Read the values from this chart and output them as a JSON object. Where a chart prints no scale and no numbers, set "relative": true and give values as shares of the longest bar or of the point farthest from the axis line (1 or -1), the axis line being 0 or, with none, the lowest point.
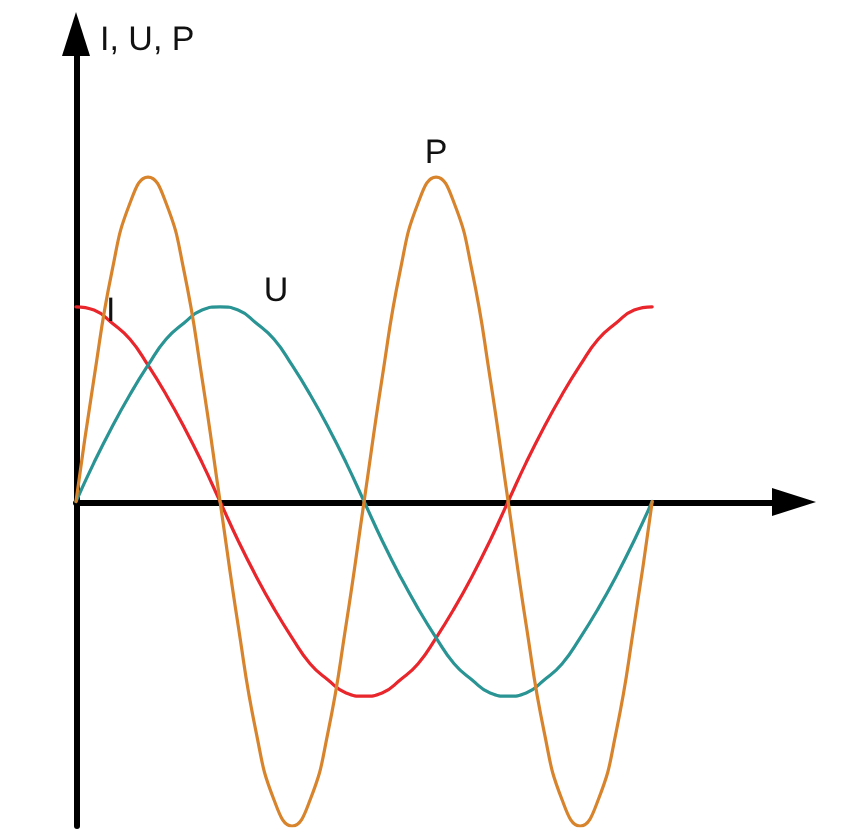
{
  "chart_data": {
    "type": "line",
    "ylabel": "I, U, P",
    "relative": true,
    "legend": false,
    "grid": false,
    "marker": "none",
    "line_style": "solid",
    "categories": [
      null,
      null,
      null,
      null,
      null,
      null,
      null,
      null,
      null,
      null,
      null,
      null,
      null,
      null,
      null,
      null,
      null,
      null,
      null,
      null,
      null,
      null,
      null,
      null,
      null,
      null,
      null,
      null,
      null,
      null,
      null,
      null,
      null
    ],
    "series": [
      {
        "name": "I",
        "color": "#e8262b",
        "values": [
          0.6,
          0.59,
          0.55,
          0.5,
          0.42,
          0.33,
          0.23,
          0.12,
          0,
          -0.12,
          -0.23,
          -0.33,
          -0.42,
          -0.5,
          -0.55,
          -0.59,
          -0.6,
          -0.59,
          -0.55,
          -0.5,
          -0.42,
          -0.33,
          -0.23,
          -0.12,
          0,
          0.12,
          0.23,
          0.33,
          0.42,
          0.5,
          0.55,
          0.59,
          0.6
        ]
      },
      {
        "name": "U",
        "color": "#2a9494",
        "values": [
          0,
          0.12,
          0.23,
          0.33,
          0.42,
          0.5,
          0.55,
          0.59,
          0.6,
          0.59,
          0.55,
          0.5,
          0.42,
          0.33,
          0.23,
          0.12,
          0,
          -0.12,
          -0.23,
          -0.33,
          -0.42,
          -0.5,
          -0.55,
          -0.59,
          -0.6,
          -0.59,
          -0.55,
          -0.5,
          -0.42,
          -0.33,
          -0.23,
          -0.12,
          0
        ]
      },
      {
        "name": "P",
        "color": "#d8842c",
        "values": [
          0,
          0.38,
          0.71,
          0.92,
          1,
          0.92,
          0.71,
          0.38,
          0,
          -0.38,
          -0.71,
          -0.92,
          -1,
          -0.92,
          -0.71,
          -0.38,
          0,
          0.38,
          0.71,
          0.92,
          1,
          0.92,
          0.71,
          0.38,
          0,
          -0.38,
          -0.71,
          -0.92,
          -1,
          -0.92,
          -0.71,
          -0.38,
          0
        ]
      }
    ]
  }
}
